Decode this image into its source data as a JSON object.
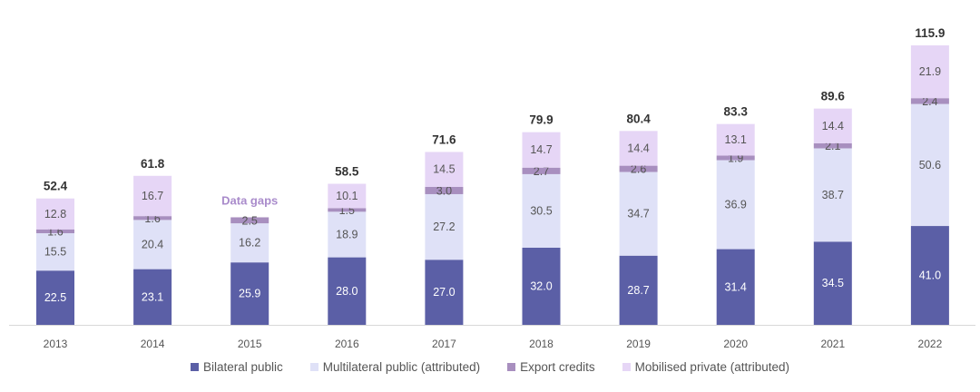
{
  "chart_data": {
    "type": "bar",
    "stacked": true,
    "categories": [
      "2013",
      "2014",
      "2015",
      "2016",
      "2017",
      "2018",
      "2019",
      "2020",
      "2021",
      "2022"
    ],
    "series": [
      {
        "name": "Bilateral public",
        "color": "#5b5fa6",
        "label_color": "#ffffff",
        "values": [
          22.5,
          23.1,
          25.9,
          28.0,
          27.0,
          32.0,
          28.7,
          31.4,
          34.5,
          41.0
        ]
      },
      {
        "name": "Multilateral public (attributed)",
        "color": "#dfe1f7",
        "label_color": "#555555",
        "values": [
          15.5,
          20.4,
          16.2,
          18.9,
          27.2,
          30.5,
          34.7,
          36.9,
          38.7,
          50.6
        ]
      },
      {
        "name": "Export credits",
        "color": "#a88fbf",
        "label_color": "#555555",
        "values": [
          1.6,
          1.6,
          2.5,
          1.5,
          3.0,
          2.7,
          2.6,
          1.9,
          2.1,
          2.4
        ]
      },
      {
        "name": "Mobilised private (attributed)",
        "color": "#e6d6f6",
        "label_color": "#555555",
        "values": [
          12.8,
          16.7,
          null,
          10.1,
          14.5,
          14.7,
          14.4,
          13.1,
          14.4,
          21.9
        ]
      }
    ],
    "totals": [
      "52.4",
      "61.8",
      null,
      "58.5",
      "71.6",
      "79.9",
      "80.4",
      "83.3",
      "89.6",
      "115.9"
    ],
    "annotations": [
      {
        "category": "2015",
        "text": "Data gaps",
        "color": "#a98bcb"
      }
    ],
    "ylim": [
      0,
      120
    ],
    "grid": false,
    "legend_position": "bottom",
    "xlabel": "",
    "ylabel": ""
  }
}
